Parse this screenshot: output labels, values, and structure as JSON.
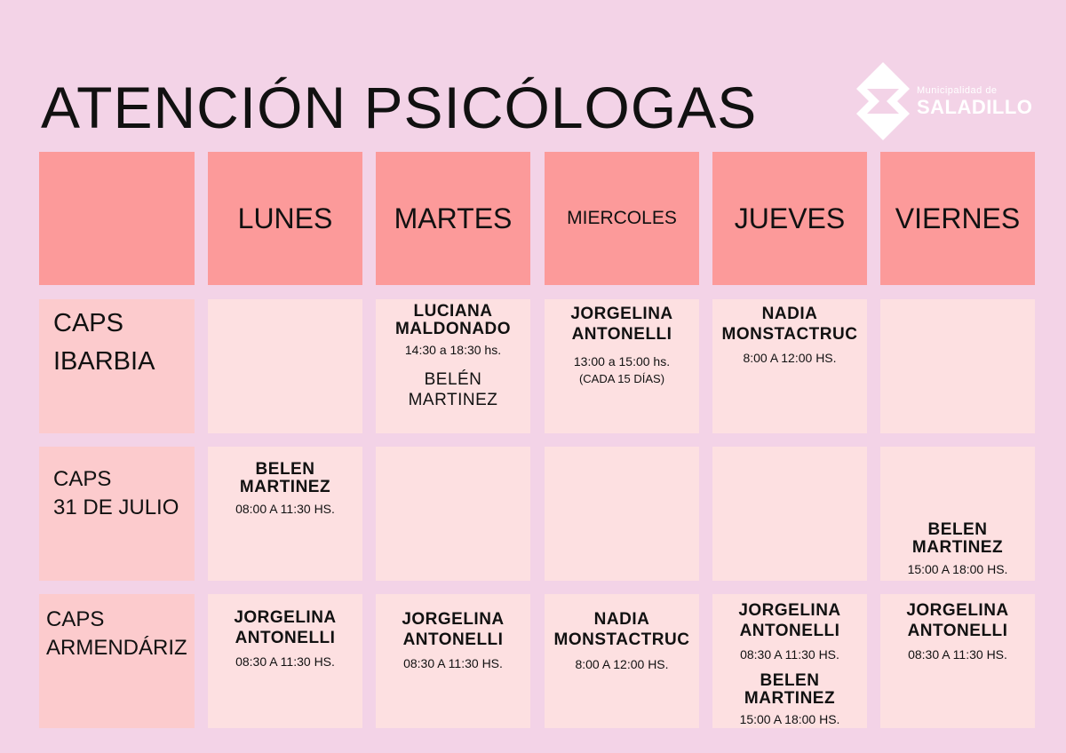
{
  "title": "ATENCIÓN PSICÓLOGAS",
  "logo": {
    "subtitle": "Municipalidad de",
    "name": "SALADILLO"
  },
  "days": [
    "LUNES",
    "MARTES",
    "MIERCOLES",
    "JUEVES",
    "VIERNES"
  ],
  "rows": [
    {
      "label_line1": "CAPS",
      "label_line2": "IBARBIA",
      "lunes": {},
      "martes": {
        "name1": "LUCIANA",
        "name2": "MALDONADO",
        "time": "14:30 a 18:30 hs.",
        "extra_name1": "BELÉN",
        "extra_name2": "MARTINEZ"
      },
      "miercoles": {
        "name1": "JORGELINA",
        "name2": "ANTONELLI",
        "time": "13:00 a 15:00 hs.",
        "note": "(CADA 15 DÍAS)"
      },
      "jueves": {
        "name1": "NADIA",
        "name2": "MONSTACTRUC",
        "time": "8:00 A 12:00 HS."
      },
      "viernes": {}
    },
    {
      "label_line1": "CAPS",
      "label_line2": "31 DE JULIO",
      "lunes": {
        "name1": "BELEN",
        "name2": "MARTINEZ",
        "time": "08:00 A 11:30 HS."
      },
      "martes": {},
      "miercoles": {},
      "jueves": {},
      "viernes": {
        "name1": "BELEN",
        "name2": "MARTINEZ",
        "time": "15:00 A 18:00 HS."
      }
    },
    {
      "label_line1": "CAPS",
      "label_line2": "ARMENDÁRIZ",
      "lunes": {
        "name1": "JORGELINA",
        "name2": "ANTONELLI",
        "time": "08:30 A 11:30 HS."
      },
      "martes": {
        "name1": "JORGELINA",
        "name2": "ANTONELLI",
        "time": "08:30 A 11:30 HS."
      },
      "miercoles": {
        "name1": "NADIA",
        "name2": "MONSTACTRUC",
        "time": "8:00 A 12:00 HS."
      },
      "jueves": {
        "name1": "JORGELINA",
        "name2": "ANTONELLI",
        "time": "08:30 A 11:30 HS.",
        "extra_name1": "BELEN",
        "extra_name2": "MARTINEZ",
        "extra_time": "15:00 A 18:00 HS."
      },
      "viernes": {
        "name1": "JORGELINA",
        "name2": "ANTONELLI",
        "time": "08:30 A 11:30 HS."
      }
    }
  ],
  "colors": {
    "background": "#f3d3e7",
    "header": "#fc9a9a",
    "row_header": "#fccbcd",
    "cell": "#fde0e1"
  }
}
